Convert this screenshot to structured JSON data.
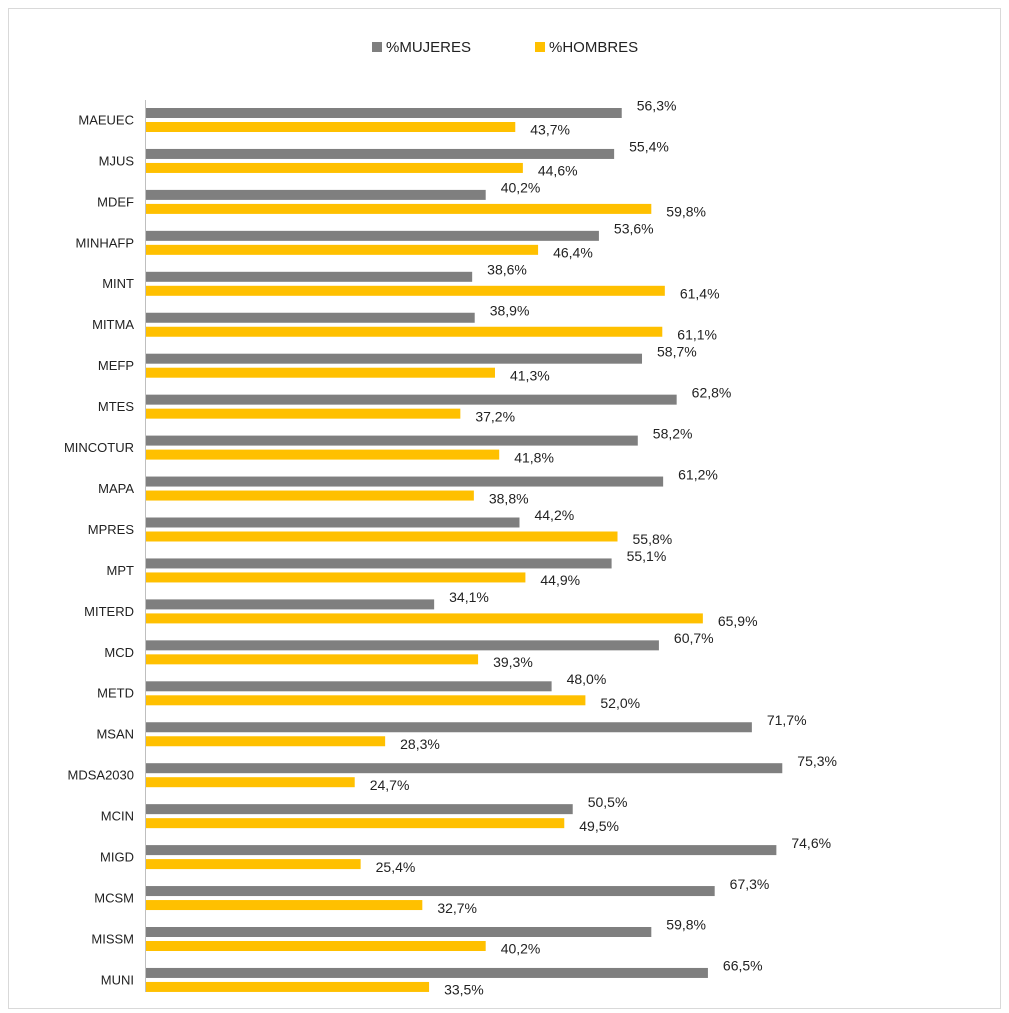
{
  "chart_data": {
    "type": "bar",
    "orientation": "horizontal",
    "categories": [
      "MAEUEC",
      "MJUS",
      "MDEF",
      "MINHAFP",
      "MINT",
      "MITMA",
      "MEFP",
      "MTES",
      "MINCOTUR",
      "MAPA",
      "MPRES",
      "MPT",
      "MITERD",
      "MCD",
      "METD",
      "MSAN",
      "MDSA2030",
      "MCIN",
      "MIGD",
      "MCSM",
      "MISSM",
      "MUNI"
    ],
    "series": [
      {
        "name": "%MUJERES",
        "color": "#7f7f7f",
        "label_color": "#222222",
        "values": [
          56.3,
          55.4,
          40.2,
          53.6,
          38.6,
          38.9,
          58.7,
          62.8,
          58.2,
          61.2,
          44.2,
          55.1,
          34.1,
          60.7,
          48.0,
          71.7,
          75.3,
          50.5,
          74.6,
          67.3,
          59.8,
          66.5
        ],
        "value_labels": [
          "56,3%",
          "55,4%",
          "40,2%",
          "53,6%",
          "38,6%",
          "38,9%",
          "58,7%",
          "62,8%",
          "58,2%",
          "61,2%",
          "44,2%",
          "55,1%",
          "34,1%",
          "60,7%",
          "48,0%",
          "71,7%",
          "75,3%",
          "50,5%",
          "74,6%",
          "67,3%",
          "59,8%",
          "66,5%"
        ]
      },
      {
        "name": "%HOMBRES",
        "color": "#ffc000",
        "label_color": "#bf9000",
        "values": [
          43.7,
          44.6,
          59.8,
          46.4,
          61.4,
          61.1,
          41.3,
          37.2,
          41.8,
          38.8,
          55.8,
          44.9,
          65.9,
          39.3,
          52.0,
          28.3,
          24.7,
          49.5,
          25.4,
          32.7,
          40.2,
          33.5
        ],
        "value_labels": [
          "43,7%",
          "44,6%",
          "59,8%",
          "46,4%",
          "61,4%",
          "61,1%",
          "41,3%",
          "37,2%",
          "41,8%",
          "38,8%",
          "55,8%",
          "44,9%",
          "65,9%",
          "39,3%",
          "52,0%",
          "28,3%",
          "24,7%",
          "49,5%",
          "25,4%",
          "32,7%",
          "40,2%",
          "33,5%"
        ]
      }
    ],
    "legend": "top"
  }
}
